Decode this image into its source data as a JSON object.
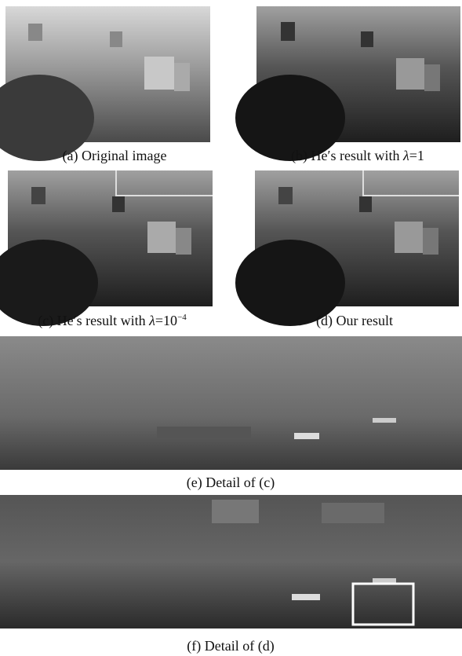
{
  "panels": [
    {
      "caption": {
        "text": "(a) Original image"
      }
    },
    {
      "caption": {
        "text": "(b) He′s result with ",
        "symbol": "λ",
        "rest": "=1"
      }
    },
    {
      "caption": {
        "text": "(c) He′s result with ",
        "symbol": "λ",
        "rest": "=10",
        "exponent": "−4"
      }
    },
    {
      "caption": {
        "text": "(d) Our result"
      }
    },
    {
      "caption": {
        "text": "(e) Detail of (c)"
      }
    },
    {
      "caption": {
        "text": "(f) Detail of (d)"
      }
    }
  ]
}
